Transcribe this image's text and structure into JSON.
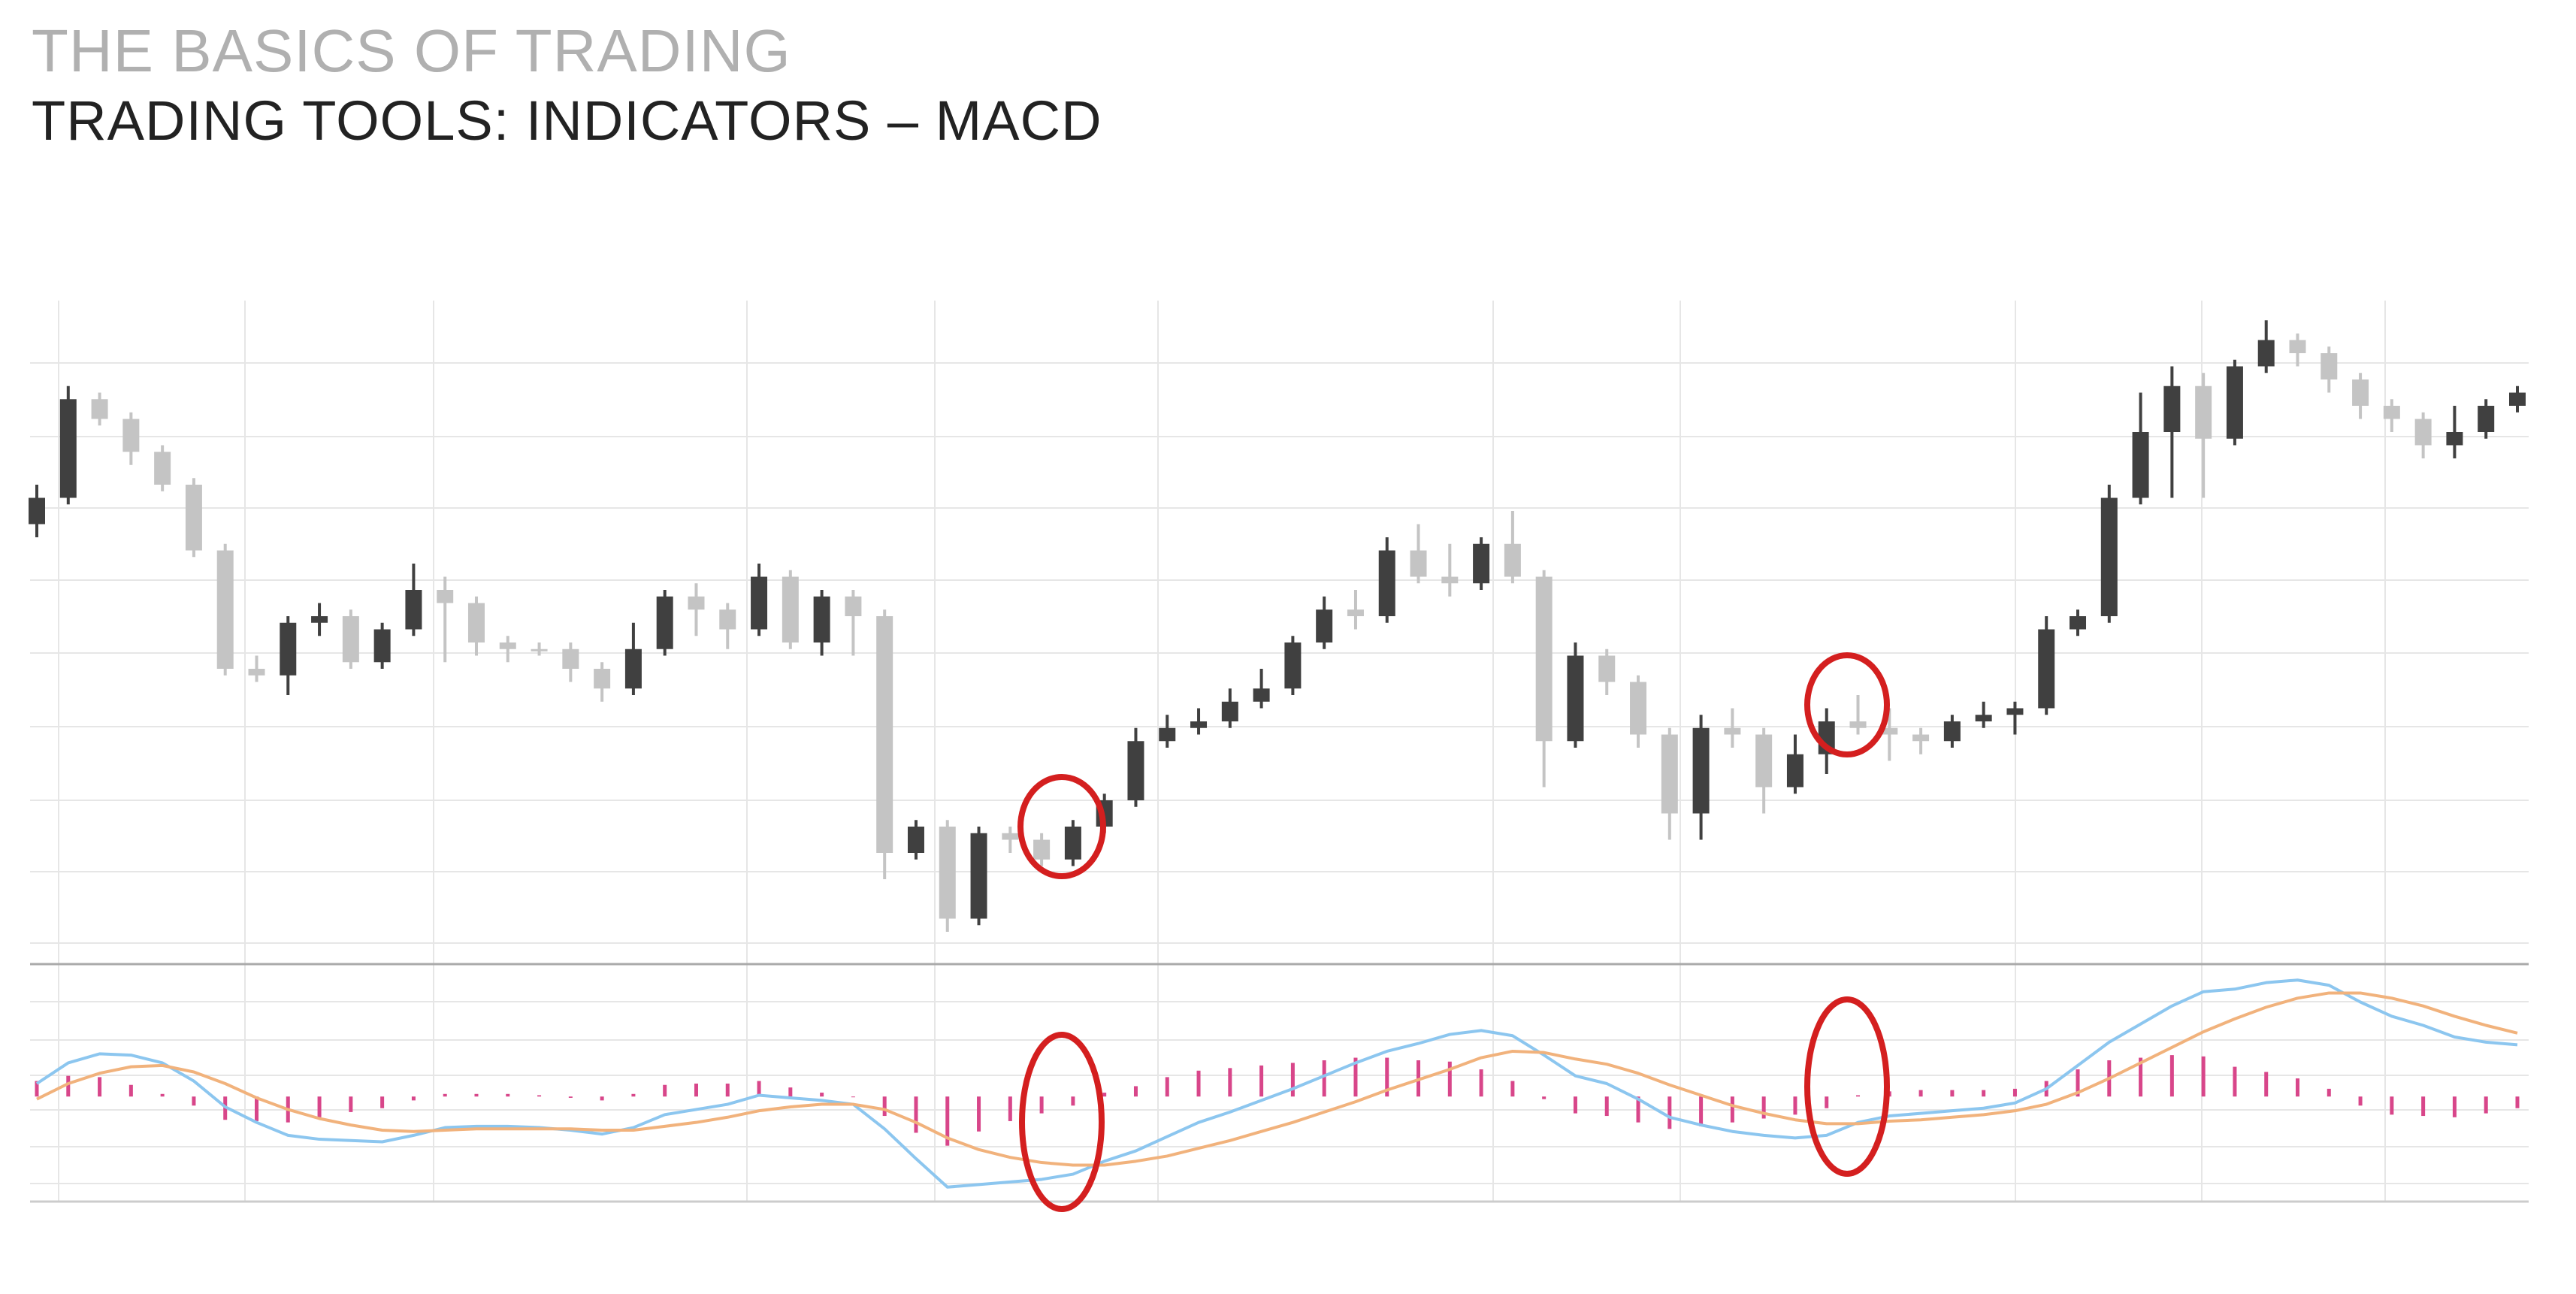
{
  "header": {
    "title": "THE BASICS OF TRADING",
    "subtitle": "TRADING TOOLS: INDICATORS – MACD"
  },
  "chart_data": [
    {
      "type": "candlestick",
      "up_color": "#404040",
      "down_color": "#c4c4c4",
      "ylim": [
        0,
        100
      ],
      "open": [
        66,
        70,
        85,
        82,
        77,
        72,
        62,
        44,
        43,
        51,
        52,
        45,
        50,
        56,
        54,
        48,
        47,
        47,
        44,
        41,
        47,
        55,
        53,
        50,
        58,
        48,
        55,
        52,
        16,
        20,
        6,
        19,
        18,
        15,
        20,
        24,
        33,
        35,
        36,
        39,
        41,
        48,
        53,
        52,
        62,
        58,
        57,
        63,
        58,
        33,
        46,
        42,
        34,
        22,
        35,
        34,
        26,
        31,
        36,
        35,
        34,
        33,
        36,
        37,
        38,
        50,
        52,
        70,
        80,
        87,
        79,
        90,
        94,
        92,
        88,
        84,
        82,
        78,
        80,
        84
      ],
      "high": [
        72,
        87,
        86,
        83,
        78,
        73,
        63,
        46,
        52,
        54,
        53,
        51,
        60,
        58,
        55,
        49,
        48,
        48,
        45,
        51,
        56,
        57,
        54,
        60,
        59,
        56,
        56,
        53,
        21,
        21,
        20,
        20,
        19,
        21,
        25,
        35,
        37,
        38,
        41,
        44,
        49,
        55,
        56,
        64,
        66,
        63,
        64,
        68,
        59,
        48,
        47,
        43,
        35,
        37,
        38,
        35,
        34,
        38,
        40,
        38,
        35,
        37,
        39,
        39,
        52,
        53,
        72,
        86,
        90,
        89,
        91,
        97,
        95,
        93,
        89,
        85,
        83,
        84,
        85,
        87
      ],
      "low": [
        64,
        69,
        81,
        75,
        71,
        61,
        43,
        42,
        40,
        49,
        44,
        44,
        49,
        45,
        46,
        45,
        46,
        42,
        39,
        40,
        46,
        49,
        47,
        49,
        47,
        46,
        46,
        12,
        15,
        4,
        5,
        16,
        14,
        14,
        19,
        23,
        32,
        34,
        35,
        38,
        40,
        47,
        50,
        51,
        57,
        55,
        56,
        57,
        26,
        32,
        40,
        32,
        18,
        18,
        32,
        22,
        25,
        28,
        34,
        30,
        31,
        32,
        35,
        34,
        37,
        49,
        51,
        69,
        70,
        70,
        78,
        89,
        90,
        86,
        82,
        80,
        76,
        76,
        79,
        83
      ],
      "close": [
        70,
        85,
        82,
        77,
        72,
        62,
        44,
        43,
        51,
        52,
        45,
        50,
        56,
        54,
        48,
        47,
        47,
        44,
        41,
        47,
        55,
        53,
        50,
        58,
        48,
        55,
        52,
        16,
        20,
        6,
        19,
        18,
        15,
        20,
        24,
        33,
        35,
        36,
        39,
        41,
        48,
        53,
        52,
        62,
        58,
        57,
        63,
        58,
        33,
        46,
        42,
        34,
        22,
        35,
        34,
        26,
        31,
        36,
        35,
        34,
        33,
        36,
        37,
        38,
        50,
        52,
        70,
        80,
        87,
        79,
        90,
        94,
        92,
        88,
        84,
        82,
        78,
        80,
        84,
        86
      ]
    },
    {
      "type": "macd",
      "ylim": [
        -8,
        10
      ],
      "series": [
        {
          "color": "#8cc6ef",
          "values": [
            1.0,
            2.6,
            3.3,
            3.2,
            2.6,
            1.2,
            -0.8,
            -2.0,
            -3.0,
            -3.3,
            -3.4,
            -3.5,
            -3.0,
            -2.4,
            -2.3,
            -2.3,
            -2.4,
            -2.6,
            -2.9,
            -2.4,
            -1.4,
            -1.0,
            -0.6,
            0.1,
            -0.1,
            -0.3,
            -0.6,
            -2.5,
            -4.8,
            -7.0,
            -6.8,
            -6.6,
            -6.4,
            -6.0,
            -5.0,
            -4.2,
            -3.1,
            -2.0,
            -1.2,
            -0.3,
            0.6,
            1.6,
            2.6,
            3.5,
            4.1,
            4.8,
            5.1,
            4.7,
            3.2,
            1.6,
            1.0,
            -0.2,
            -1.6,
            -2.2,
            -2.7,
            -3.0,
            -3.2,
            -3.0,
            -2.0,
            -1.5,
            -1.3,
            -1.1,
            -0.9,
            -0.5,
            0.6,
            2.4,
            4.2,
            5.6,
            7.0,
            8.1,
            8.3,
            8.8,
            9.0,
            8.6,
            7.3,
            6.2,
            5.5,
            4.6,
            4.2,
            4.0
          ]
        },
        {
          "color": "#f1b27c",
          "values": [
            -0.2,
            1.0,
            1.8,
            2.3,
            2.4,
            1.9,
            1.0,
            -0.1,
            -1.0,
            -1.7,
            -2.2,
            -2.6,
            -2.7,
            -2.6,
            -2.5,
            -2.5,
            -2.5,
            -2.5,
            -2.6,
            -2.6,
            -2.3,
            -2.0,
            -1.6,
            -1.1,
            -0.8,
            -0.6,
            -0.6,
            -1.0,
            -2.0,
            -3.2,
            -4.1,
            -4.7,
            -5.1,
            -5.3,
            -5.3,
            -5.0,
            -4.6,
            -4.0,
            -3.4,
            -2.7,
            -2.0,
            -1.2,
            -0.4,
            0.5,
            1.3,
            2.1,
            3.0,
            3.5,
            3.4,
            2.9,
            2.5,
            1.8,
            0.9,
            0.1,
            -0.7,
            -1.3,
            -1.8,
            -2.1,
            -2.1,
            -1.9,
            -1.8,
            -1.6,
            -1.4,
            -1.1,
            -0.6,
            0.3,
            1.4,
            2.6,
            3.8,
            5.0,
            6.0,
            6.9,
            7.6,
            8.0,
            8.0,
            7.6,
            7.0,
            6.2,
            5.5,
            4.9
          ]
        }
      ],
      "histogram": {
        "color": "#d8468a",
        "values": [
          1.2,
          1.6,
          1.5,
          0.9,
          0.2,
          -0.7,
          -1.8,
          -1.9,
          -2.0,
          -1.6,
          -1.2,
          -0.9,
          -0.3,
          0.2,
          0.2,
          0.2,
          0.1,
          -0.1,
          -0.3,
          0.2,
          0.9,
          1.0,
          1.0,
          1.2,
          0.7,
          0.3,
          0,
          -1.5,
          -2.8,
          -3.8,
          -2.7,
          -1.9,
          -1.3,
          -0.7,
          0.3,
          0.8,
          1.5,
          2.0,
          2.2,
          2.4,
          2.6,
          2.8,
          3.0,
          3.0,
          2.8,
          2.7,
          2.1,
          1.2,
          -0.2,
          -1.3,
          -1.5,
          -2.0,
          -2.5,
          -2.3,
          -2.0,
          -1.7,
          -1.4,
          -0.9,
          0.1,
          0.4,
          0.5,
          0.5,
          0.5,
          0.6,
          1.2,
          2.1,
          2.8,
          3.0,
          3.2,
          3.1,
          2.3,
          1.9,
          1.4,
          0.6,
          -0.7,
          -1.4,
          -1.5,
          -1.6,
          -1.3,
          -0.9
        ]
      }
    }
  ]
}
